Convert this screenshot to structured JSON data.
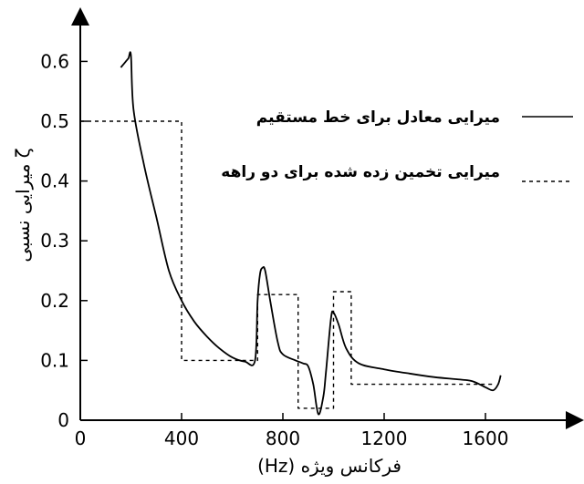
{
  "chart_data": {
    "type": "line",
    "xlabel": "(Hz)  فرکانس ویژه",
    "ylabel": "میرایی نسبی ζ",
    "xlim": [
      0,
      1850
    ],
    "ylim": [
      0,
      0.68
    ],
    "x_ticks": [
      "0",
      "400",
      "800",
      "1200",
      "1600"
    ],
    "y_ticks": [
      "0",
      "0.1",
      "0.2",
      "0.3",
      "0.4",
      "0.5",
      "0.6"
    ],
    "legend_position": "top-right",
    "series": [
      {
        "name": "میرایی معادل برای خط مستقیم",
        "style": "solid",
        "color": "#000000",
        "points": [
          [
            160,
            0.59
          ],
          [
            170,
            0.595
          ],
          [
            180,
            0.6
          ],
          [
            190,
            0.605
          ],
          [
            200,
            0.61
          ],
          [
            210,
            0.52
          ],
          [
            250,
            0.43
          ],
          [
            300,
            0.34
          ],
          [
            350,
            0.25
          ],
          [
            400,
            0.2
          ],
          [
            450,
            0.165
          ],
          [
            500,
            0.14
          ],
          [
            550,
            0.12
          ],
          [
            600,
            0.105
          ],
          [
            650,
            0.098
          ],
          [
            690,
            0.1
          ],
          [
            700,
            0.2
          ],
          [
            710,
            0.245
          ],
          [
            720,
            0.255
          ],
          [
            730,
            0.25
          ],
          [
            750,
            0.2
          ],
          [
            780,
            0.13
          ],
          [
            800,
            0.11
          ],
          [
            850,
            0.1
          ],
          [
            880,
            0.095
          ],
          [
            900,
            0.09
          ],
          [
            920,
            0.06
          ],
          [
            940,
            0.01
          ],
          [
            960,
            0.04
          ],
          [
            970,
            0.08
          ],
          [
            990,
            0.17
          ],
          [
            1000,
            0.18
          ],
          [
            1020,
            0.16
          ],
          [
            1050,
            0.12
          ],
          [
            1100,
            0.095
          ],
          [
            1200,
            0.085
          ],
          [
            1300,
            0.078
          ],
          [
            1400,
            0.072
          ],
          [
            1500,
            0.068
          ],
          [
            1550,
            0.065
          ],
          [
            1600,
            0.055
          ],
          [
            1630,
            0.05
          ],
          [
            1650,
            0.06
          ],
          [
            1660,
            0.075
          ]
        ]
      },
      {
        "name": "میرایی تخمین زده شده برای دو راهه",
        "style": "dashed",
        "color": "#000000",
        "points": [
          [
            0,
            0.5
          ],
          [
            400,
            0.5
          ],
          [
            400,
            0.1
          ],
          [
            700,
            0.1
          ],
          [
            700,
            0.21
          ],
          [
            860,
            0.21
          ],
          [
            860,
            0.02
          ],
          [
            1000,
            0.02
          ],
          [
            1000,
            0.215
          ],
          [
            1070,
            0.215
          ],
          [
            1070,
            0.06
          ],
          [
            1640,
            0.06
          ]
        ]
      }
    ]
  }
}
